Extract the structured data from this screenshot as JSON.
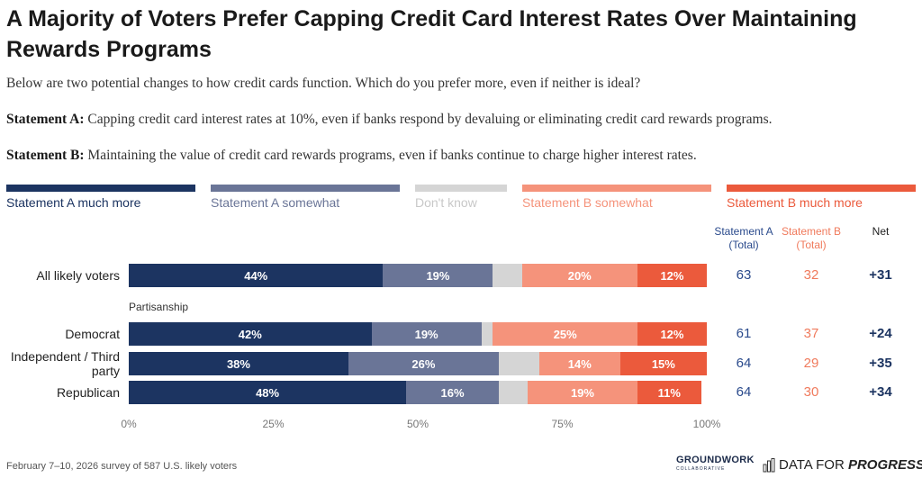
{
  "chart_data": {
    "type": "stacked-barh",
    "title": "A Majority of Voters Prefer Capping Credit Card Interest Rates Over Maintaining Rewards Programs",
    "subtitle": "Below are two potential changes to how credit cards function. Which do you prefer more, even if neither is ideal?",
    "statement_a": {
      "label": "Statement A:",
      "text": "Capping credit card interest rates at 10%, even if banks respond by devaluing or eliminating credit card rewards programs."
    },
    "statement_b": {
      "label": "Statement B:",
      "text": "Maintaining the value of credit card rewards programs, even if banks continue to charge higher interest rates."
    },
    "categories": [
      "All likely voters",
      "Democrat",
      "Independent / Third party",
      "Republican"
    ],
    "group_label": "Partisanship",
    "series": [
      {
        "name": "Statement A much more",
        "color": "#1c3461",
        "values": [
          44,
          42,
          38,
          48
        ],
        "value_labels": [
          "44%",
          "42%",
          "38%",
          "48%"
        ]
      },
      {
        "name": "Statement A somewhat",
        "color": "#6a7597",
        "values": [
          19,
          19,
          26,
          16
        ],
        "value_labels": [
          "19%",
          "19%",
          "26%",
          "16%"
        ]
      },
      {
        "name": "Don't know",
        "color": "#d5d5d5",
        "values": [
          5,
          2,
          7,
          5
        ]
      },
      {
        "name": "Statement B somewhat",
        "color": "#f5937b",
        "values": [
          20,
          25,
          14,
          19
        ],
        "value_labels": [
          "20%",
          "25%",
          "14%",
          "19%"
        ]
      },
      {
        "name": "Statement B much more",
        "color": "#eb5a3c",
        "values": [
          12,
          12,
          15,
          11
        ],
        "value_labels": [
          "12%",
          "12%",
          "15%",
          "11%"
        ]
      }
    ],
    "totals": {
      "headers": [
        {
          "text": "Statement A (Total)",
          "color": "#2a4a8c"
        },
        {
          "text": "Statement B (Total)",
          "color": "#f07a5c"
        },
        {
          "text": "Net",
          "color": "#222222"
        }
      ],
      "a_total": [
        63,
        61,
        64,
        64
      ],
      "b_total": [
        32,
        37,
        29,
        30
      ],
      "net": [
        "+31",
        "+24",
        "+35",
        "+34"
      ]
    },
    "xlim": [
      0,
      100
    ],
    "xticks": [
      {
        "value": 0,
        "label": "0%"
      },
      {
        "value": 25,
        "label": "25%"
      },
      {
        "value": 50,
        "label": "50%"
      },
      {
        "value": 75,
        "label": "75%"
      },
      {
        "value": 100,
        "label": "100%"
      }
    ]
  },
  "footer": {
    "source": "February 7–10, 2026 survey of 587 U.S. likely voters",
    "logo_1": "GROUNDWORK",
    "logo_1_sub": "COLLABORATIVE",
    "logo_2": "DATA FOR",
    "logo_2_em": "PROGRESS"
  }
}
